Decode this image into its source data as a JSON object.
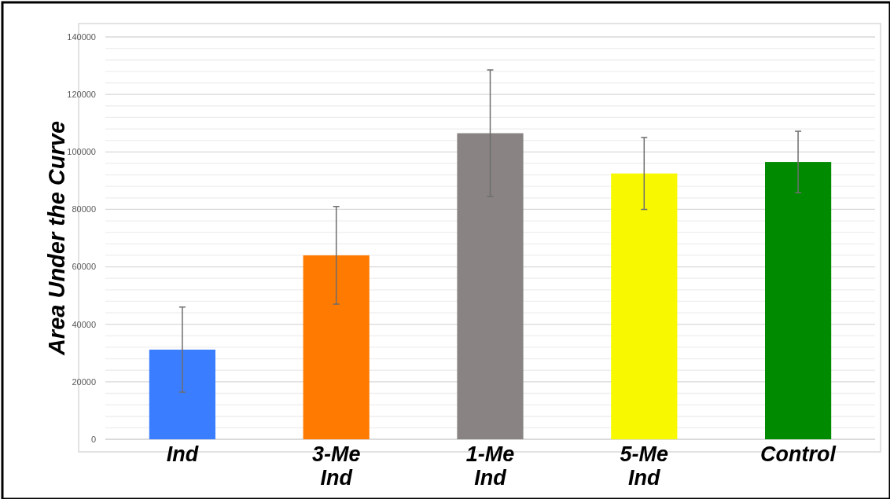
{
  "chart_data": {
    "type": "bar",
    "ylabel": "Area Under the Curve",
    "categories": [
      "Ind",
      "3-Me Ind",
      "1-Me Ind",
      "5-Me Ind",
      "Control"
    ],
    "values": [
      31200,
      64000,
      106500,
      92500,
      96500
    ],
    "errors": [
      14800,
      17000,
      22000,
      12500,
      10700
    ],
    "colors": [
      "#3b7dff",
      "#ff7a00",
      "#898383",
      "#f8f800",
      "#008a00"
    ],
    "ylim": [
      0,
      140000
    ],
    "yticks": [
      0,
      {
        "value": 4000,
        "label": null
      },
      {
        "value": 8000,
        "label": null
      },
      {
        "value": 12000,
        "label": null
      },
      {
        "value": 16000,
        "label": null
      },
      20000,
      {
        "value": 24000,
        "label": null
      },
      {
        "value": 28000,
        "label": null
      },
      {
        "value": 32000,
        "label": null
      },
      {
        "value": 36000,
        "label": null
      },
      40000,
      {
        "value": 44000,
        "label": null
      },
      {
        "value": 48000,
        "label": null
      },
      {
        "value": 52000,
        "label": null
      },
      {
        "value": 56000,
        "label": null
      },
      60000,
      {
        "value": 64000,
        "label": null
      },
      {
        "value": 68000,
        "label": null
      },
      {
        "value": 72000,
        "label": null
      },
      {
        "value": 76000,
        "label": null
      },
      80000,
      {
        "value": 84000,
        "label": null
      },
      {
        "value": 88000,
        "label": null
      },
      {
        "value": 92000,
        "label": null
      },
      {
        "value": 96000,
        "label": null
      },
      100000,
      {
        "value": 104000,
        "label": null
      },
      {
        "value": 108000,
        "label": null
      },
      {
        "value": 112000,
        "label": null
      },
      {
        "value": 116000,
        "label": null
      },
      120000,
      {
        "value": 124000,
        "label": null
      },
      {
        "value": 128000,
        "label": null
      },
      {
        "value": 132000,
        "label": null
      },
      {
        "value": 136000,
        "label": null
      },
      140000
    ],
    "grid": "y"
  }
}
